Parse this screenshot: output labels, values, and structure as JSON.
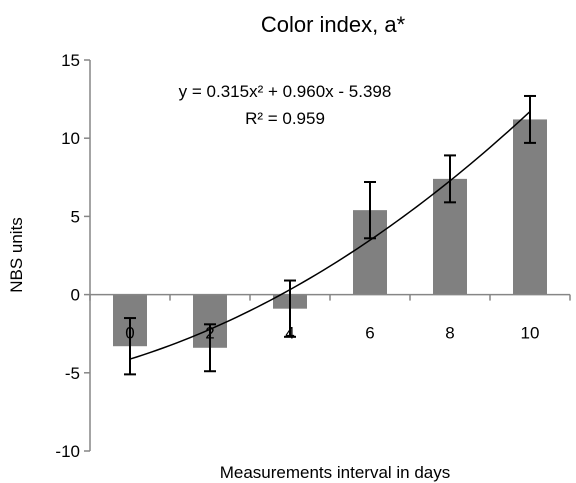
{
  "chart_data": {
    "type": "bar",
    "title": "Color index, a*",
    "xlabel": "Measurements interval in days",
    "ylabel": "NBS units",
    "ylim": [
      -10,
      15
    ],
    "yticks": [
      -10,
      -5,
      0,
      5,
      10,
      15
    ],
    "categories": [
      "0",
      "2",
      "4",
      "6",
      "8",
      "10"
    ],
    "values": [
      -3.3,
      -3.4,
      -0.9,
      5.4,
      7.4,
      11.2
    ],
    "error_bars": [
      1.8,
      1.5,
      1.8,
      1.8,
      1.5,
      1.5
    ],
    "bar_color": "#808080",
    "gridlines": false,
    "trendline": {
      "type": "polynomial",
      "coefficients": [
        0.315,
        0.96,
        -5.398
      ],
      "equation": "y = 0.315x² + 0.960x - 5.398",
      "r_squared": "R² = 0.959"
    }
  }
}
